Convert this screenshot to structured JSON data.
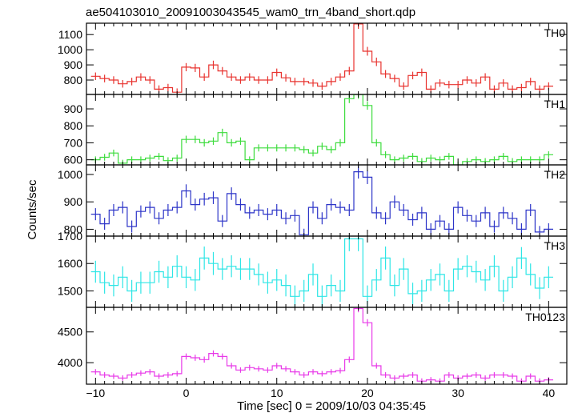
{
  "chart_data": {
    "type": "line",
    "title": "ae504103010_20091003043545_wam0_trn_4band_short.qdp",
    "xlabel": "Time [sec] 0 = 2009/10/03 04:35:45",
    "ylabel": "Counts/sec",
    "xlim": [
      -11,
      42
    ],
    "x_ticks": [
      -10,
      0,
      10,
      20,
      30,
      40
    ],
    "bin_width": 1,
    "x": [
      -10,
      -9,
      -8,
      -7,
      -6,
      -5,
      -4,
      -3,
      -2,
      -1,
      0,
      1,
      2,
      3,
      4,
      5,
      6,
      7,
      8,
      9,
      10,
      11,
      12,
      13,
      14,
      15,
      16,
      17,
      18,
      19,
      20,
      21,
      22,
      23,
      24,
      25,
      26,
      27,
      28,
      29,
      30,
      31,
      32,
      33,
      34,
      35,
      36,
      37,
      38,
      39,
      40
    ],
    "panels": [
      {
        "name": "TH0",
        "color": "#e8332f",
        "ylim": [
          705,
          1175
        ],
        "yticks": [
          800,
          900,
          1000,
          1100
        ],
        "values": [
          825,
          810,
          800,
          775,
          790,
          820,
          800,
          740,
          750,
          720,
          885,
          880,
          820,
          900,
          860,
          820,
          800,
          820,
          800,
          800,
          850,
          815,
          790,
          790,
          780,
          760,
          790,
          820,
          860,
          1170,
          990,
          920,
          840,
          810,
          760,
          830,
          850,
          740,
          780,
          770,
          770,
          800,
          780,
          820,
          740,
          780,
          740,
          750,
          790,
          740,
          760
        ],
        "errors": [
          25,
          25,
          25,
          25,
          25,
          25,
          25,
          25,
          25,
          25,
          27,
          27,
          25,
          28,
          26,
          25,
          25,
          25,
          25,
          25,
          26,
          25,
          25,
          25,
          25,
          25,
          25,
          25,
          27,
          32,
          29,
          28,
          26,
          25,
          25,
          25,
          26,
          25,
          25,
          25,
          25,
          25,
          25,
          25,
          25,
          25,
          25,
          25,
          25,
          25,
          25
        ]
      },
      {
        "name": "TH1",
        "color": "#3ddc3d",
        "ylim": [
          570,
          985
        ],
        "yticks": [
          600,
          700,
          800,
          900
        ],
        "values": [
          600,
          615,
          640,
          580,
          600,
          600,
          610,
          620,
          595,
          610,
          720,
          720,
          700,
          710,
          760,
          700,
          710,
          600,
          670,
          670,
          670,
          670,
          670,
          660,
          640,
          680,
          660,
          700,
          960,
          985,
          920,
          700,
          630,
          600,
          610,
          620,
          590,
          610,
          600,
          620,
          570,
          590,
          600,
          590,
          600,
          620,
          590,
          600,
          600,
          600,
          630
        ],
        "errors": [
          20,
          20,
          20,
          20,
          20,
          20,
          20,
          20,
          20,
          20,
          22,
          22,
          22,
          22,
          23,
          22,
          22,
          20,
          21,
          21,
          21,
          21,
          21,
          21,
          20,
          21,
          21,
          22,
          26,
          26,
          25,
          22,
          20,
          20,
          20,
          20,
          20,
          20,
          20,
          20,
          20,
          20,
          20,
          20,
          20,
          20,
          20,
          20,
          20,
          20,
          20
        ]
      },
      {
        "name": "TH2",
        "color": "#2d35c8",
        "ylim": [
          775,
          1035
        ],
        "yticks": [
          800,
          900,
          1000
        ],
        "values": [
          855,
          820,
          870,
          880,
          810,
          865,
          880,
          840,
          870,
          880,
          940,
          890,
          910,
          915,
          830,
          930,
          890,
          860,
          870,
          855,
          870,
          840,
          850,
          780,
          880,
          840,
          890,
          880,
          870,
          1010,
          990,
          860,
          840,
          900,
          870,
          835,
          860,
          800,
          830,
          800,
          880,
          850,
          830,
          860,
          810,
          860,
          840,
          800,
          870,
          790,
          800
        ],
        "errors": [
          22,
          22,
          22,
          22,
          22,
          22,
          22,
          22,
          22,
          22,
          24,
          22,
          23,
          23,
          22,
          23,
          22,
          22,
          22,
          22,
          22,
          22,
          22,
          22,
          22,
          22,
          22,
          22,
          22,
          25,
          25,
          22,
          22,
          23,
          22,
          22,
          22,
          22,
          22,
          22,
          22,
          22,
          22,
          22,
          22,
          22,
          22,
          22,
          22,
          22,
          22
        ]
      },
      {
        "name": "TH3",
        "color": "#2ee6e6",
        "ylim": [
          1440,
          1700
        ],
        "yticks": [
          1500,
          1600,
          1700
        ],
        "values": [
          1570,
          1530,
          1520,
          1550,
          1500,
          1530,
          1530,
          1570,
          1550,
          1590,
          1550,
          1540,
          1620,
          1600,
          1580,
          1590,
          1580,
          1580,
          1560,
          1530,
          1540,
          1520,
          1480,
          1500,
          1560,
          1480,
          1520,
          1500,
          1690,
          1690,
          1480,
          1540,
          1620,
          1520,
          1580,
          1490,
          1500,
          1540,
          1560,
          1500,
          1580,
          1590,
          1570,
          1540,
          1590,
          1500,
          1550,
          1620,
          1560,
          1510,
          1550
        ],
        "errors": [
          40,
          40,
          40,
          40,
          40,
          40,
          40,
          40,
          40,
          40,
          40,
          40,
          42,
          42,
          40,
          40,
          40,
          40,
          40,
          40,
          40,
          40,
          40,
          40,
          40,
          40,
          40,
          40,
          45,
          45,
          40,
          40,
          42,
          40,
          40,
          40,
          40,
          40,
          40,
          40,
          40,
          40,
          40,
          40,
          40,
          40,
          40,
          40,
          40,
          40,
          40
        ]
      },
      {
        "name": "TH0123",
        "color": "#e83ae8",
        "ylim": [
          3650,
          4900
        ],
        "yticks": [
          4000,
          4500
        ],
        "values": [
          3850,
          3800,
          3780,
          3750,
          3800,
          3830,
          3850,
          3780,
          3800,
          3820,
          4100,
          4080,
          4050,
          4150,
          4100,
          3950,
          3880,
          3920,
          3900,
          3880,
          3950,
          3900,
          3850,
          3800,
          3850,
          3820,
          3850,
          3870,
          4050,
          4880,
          4650,
          3950,
          3800,
          3750,
          3780,
          3800,
          3700,
          3720,
          3700,
          3800,
          3750,
          3780,
          3800,
          3750,
          3800,
          3800,
          3780,
          3700,
          3780,
          3700,
          3720
        ],
        "errors": [
          45,
          45,
          45,
          45,
          45,
          45,
          45,
          45,
          45,
          45,
          50,
          50,
          50,
          50,
          50,
          47,
          45,
          47,
          45,
          45,
          47,
          45,
          45,
          45,
          45,
          45,
          45,
          45,
          50,
          60,
          58,
          47,
          45,
          45,
          45,
          45,
          45,
          45,
          45,
          45,
          45,
          45,
          45,
          45,
          45,
          45,
          45,
          45,
          45,
          45,
          45
        ]
      }
    ]
  }
}
